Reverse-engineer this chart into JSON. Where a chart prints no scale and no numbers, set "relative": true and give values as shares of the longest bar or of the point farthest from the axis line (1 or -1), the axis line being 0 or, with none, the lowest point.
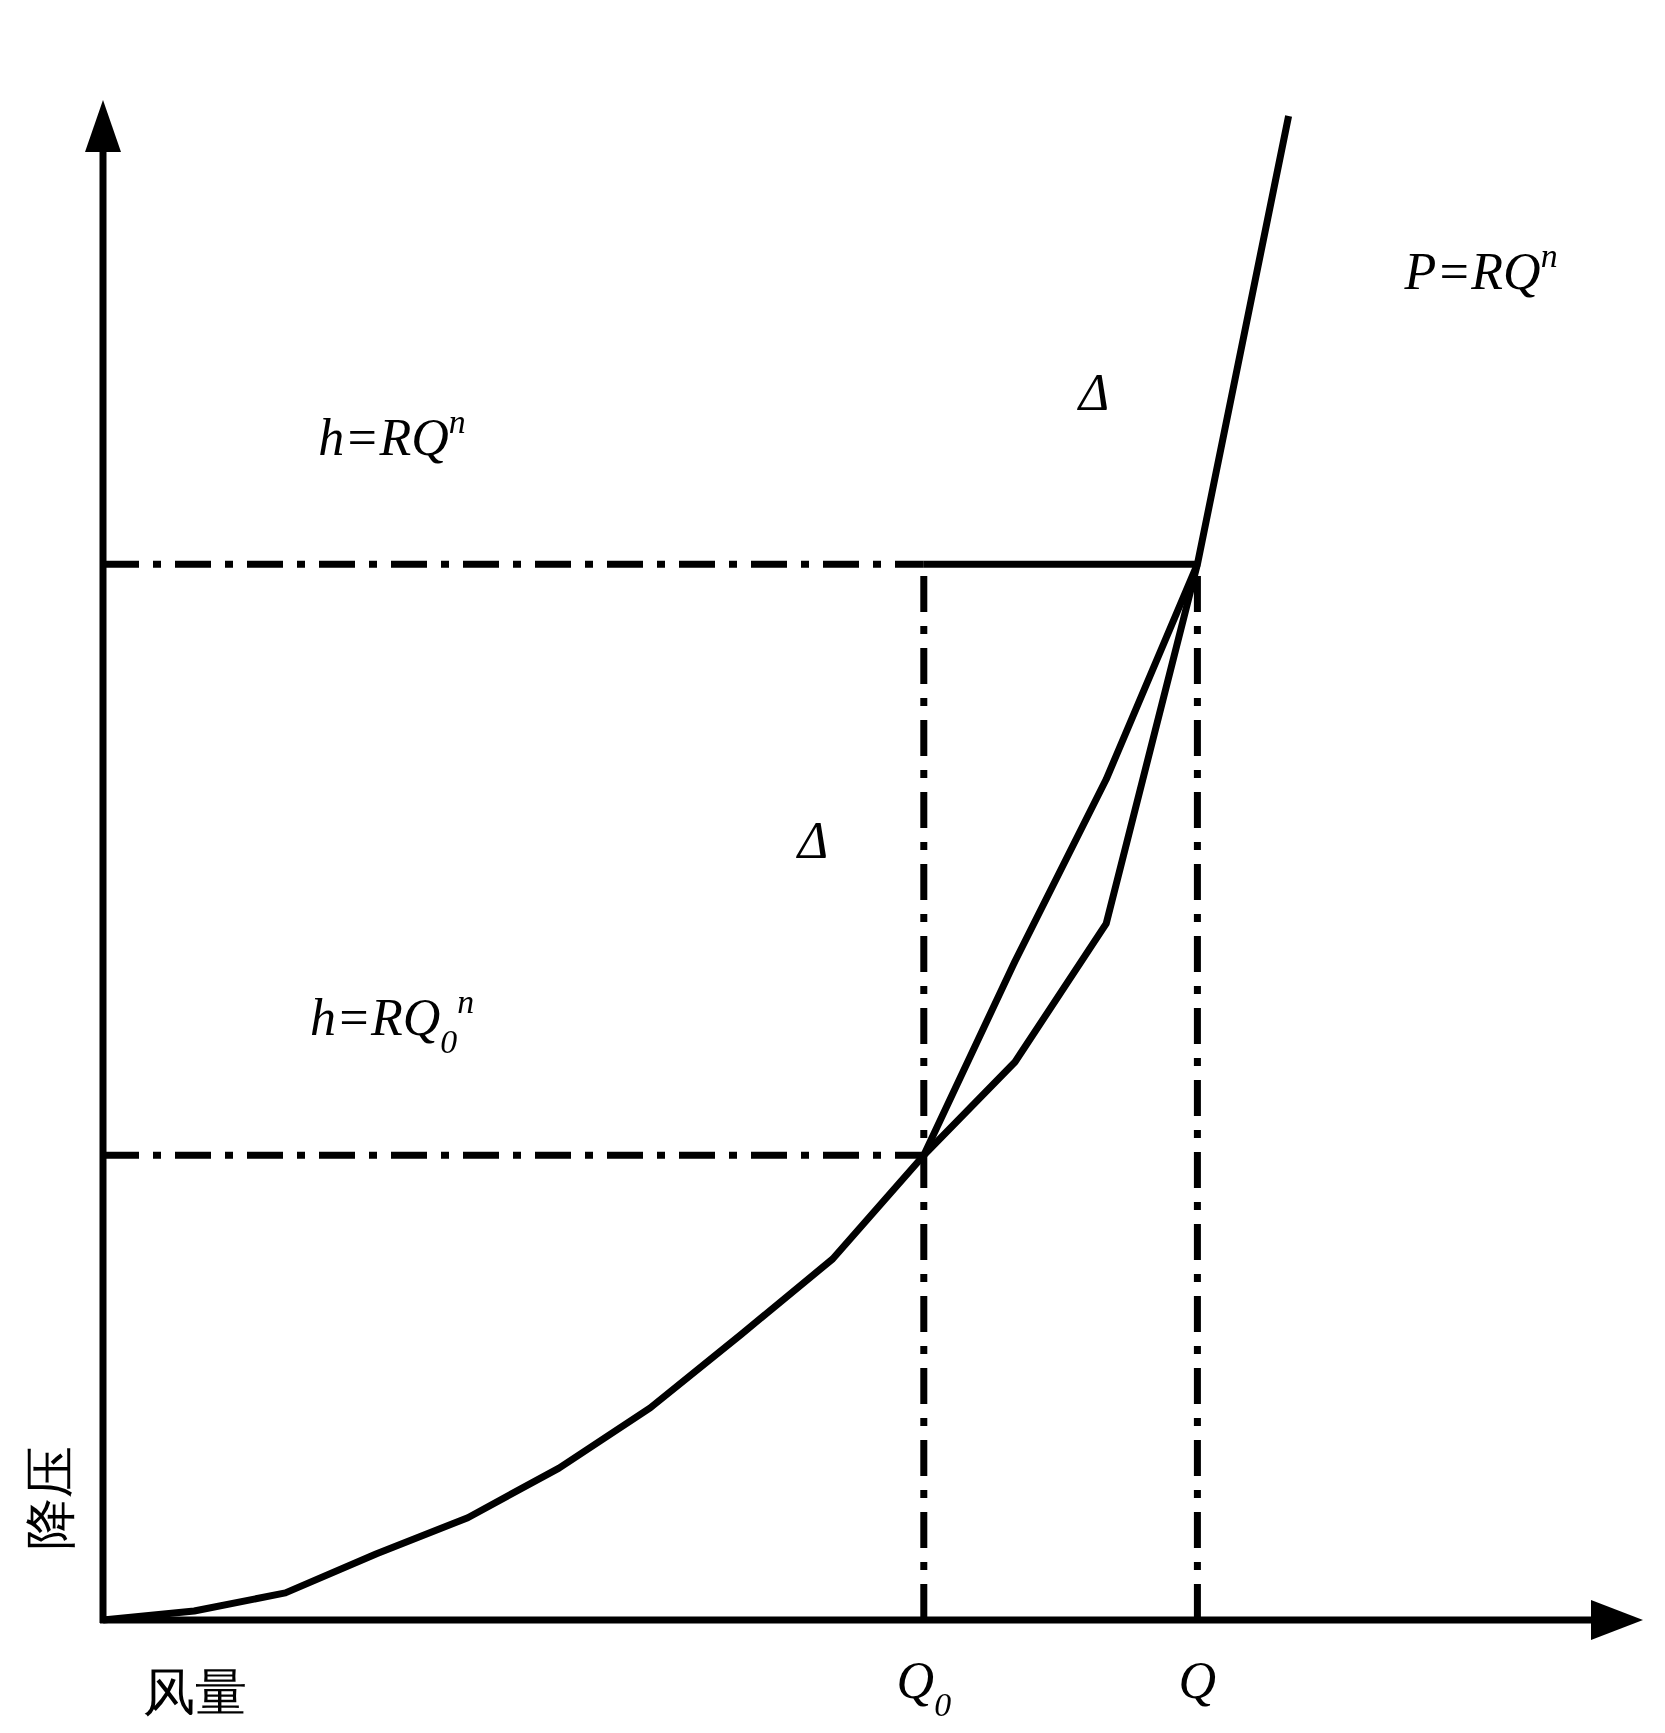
{
  "chart_data": {
    "type": "line",
    "relative": true,
    "xlabel": "风量",
    "ylabel": "降压",
    "categories": [
      null,
      null,
      null,
      null,
      null,
      null,
      null,
      null,
      null,
      "Q$_{0}$",
      null,
      null,
      "Q",
      null
    ],
    "series": [
      {
        "color": "#000000",
        "line_style": "solid",
        "values": [
          0,
          0.006,
          0.018,
          0.044,
          0.068,
          0.101,
          0.141,
          0.19,
          0.24,
          0.309,
          0.371,
          0.463,
          0.702,
          1
        ]
      },
      {
        "color": "#000000",
        "line_style": "solid",
        "values": [
          null,
          null,
          null,
          null,
          null,
          null,
          null,
          null,
          null,
          0.309,
          0.438,
          0.559,
          0.702,
          null
        ]
      },
      {
        "color": "#000000",
        "line_style": "solid",
        "values": [
          null,
          null,
          null,
          null,
          null,
          null,
          null,
          null,
          null,
          0.702,
          0.702,
          0.702,
          0.702,
          null
        ]
      },
      {
        "color": "#000000",
        "line_style": "dashdot",
        "values": [
          0.702,
          0.702,
          0.702,
          0.702,
          0.702,
          0.702,
          0.702,
          0.702,
          0.702,
          0.702,
          null,
          null,
          null,
          null
        ]
      },
      {
        "color": "#000000",
        "line_style": "dashdot",
        "values": [
          0.309,
          0.309,
          0.309,
          0.309,
          0.309,
          0.309,
          0.309,
          0.309,
          0.309,
          0.309,
          null,
          null,
          null,
          null
        ]
      }
    ],
    "ref_lines": [
      {
        "axis": "x",
        "value": "Q$_{0}$",
        "line_style": "dashdot"
      },
      {
        "axis": "x",
        "value": "Q",
        "line_style": "dashdot"
      }
    ],
    "annotations": [
      "P=RQ$^{n}$",
      "h=RQ$^{n}$",
      "Δ",
      "Δ",
      "h=RQ$_{0}$$^{n}$"
    ]
  }
}
